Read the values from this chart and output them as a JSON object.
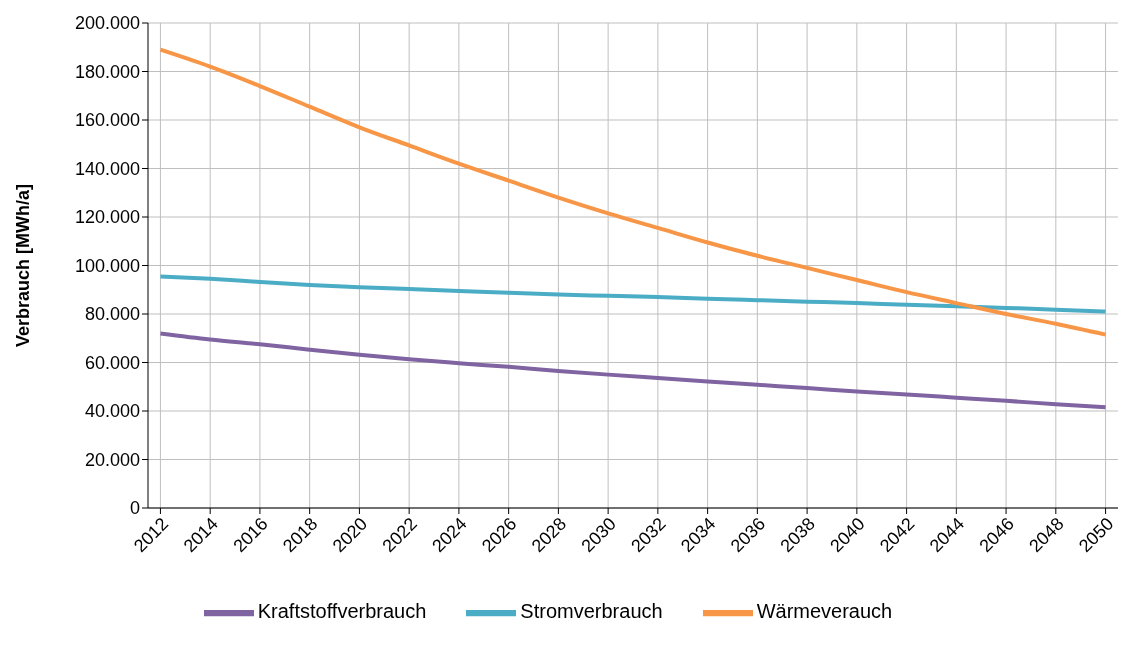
{
  "chart_data": {
    "type": "line",
    "ylabel": "Verbrauch [MWh/a]",
    "x": [
      2012,
      2014,
      2016,
      2018,
      2020,
      2022,
      2024,
      2026,
      2028,
      2030,
      2032,
      2034,
      2036,
      2038,
      2040,
      2042,
      2044,
      2046,
      2048,
      2050
    ],
    "xlim": [
      2011.5,
      2050.5
    ],
    "xticks": [
      2012,
      2014,
      2016,
      2018,
      2020,
      2022,
      2024,
      2026,
      2028,
      2030,
      2032,
      2034,
      2036,
      2038,
      2040,
      2042,
      2044,
      2046,
      2048,
      2050
    ],
    "ylim": [
      0,
      200000
    ],
    "yticks": [
      0,
      {
        "value": 20000,
        "label": "20.000"
      },
      {
        "value": 40000,
        "label": "40.000"
      },
      {
        "value": 60000,
        "label": "60.000"
      },
      {
        "value": 80000,
        "label": "80.000"
      },
      {
        "value": 100000,
        "label": "100.000"
      },
      {
        "value": 120000,
        "label": "120.000"
      },
      {
        "value": 140000,
        "label": "140.000"
      },
      {
        "value": 160000,
        "label": "160.000"
      },
      {
        "value": 180000,
        "label": "180.000"
      },
      {
        "value": 200000,
        "label": "200.000"
      }
    ],
    "grid": true,
    "legend": "bottom",
    "marker": "none",
    "line_style": "solid",
    "series": [
      {
        "name": "Stromverbrauch",
        "color": "#4bacc6",
        "values": [
          95500,
          94500,
          93200,
          92000,
          91000,
          90300,
          89500,
          88800,
          88000,
          87500,
          87000,
          86300,
          85700,
          85100,
          84500,
          83800,
          83200,
          82500,
          81800,
          81000
        ]
      },
      {
        "name": "Wärmeverauch",
        "color": "#f79646",
        "values": [
          189000,
          182000,
          174000,
          165500,
          157000,
          149500,
          142000,
          135000,
          128000,
          121500,
          115500,
          109500,
          104000,
          99000,
          94000,
          89000,
          84500,
          80000,
          76000,
          71500
        ]
      },
      {
        "name": "Kraftstoffverbrauch",
        "color": "#8064a2",
        "values": [
          72000,
          69500,
          67500,
          65300,
          63200,
          61300,
          59700,
          58200,
          56500,
          55000,
          53600,
          52200,
          50800,
          49500,
          48000,
          46800,
          45500,
          44200,
          42800,
          41500
        ]
      }
    ]
  }
}
